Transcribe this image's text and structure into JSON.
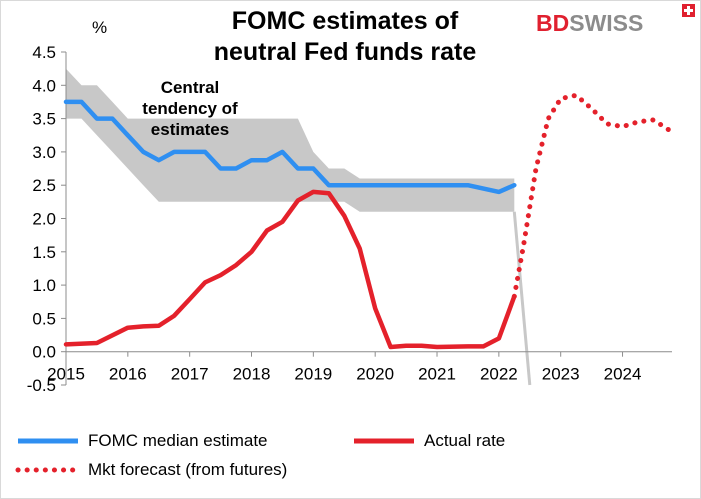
{
  "title_line1": "FOMC estimates of",
  "title_line2": "neutral Fed funds rate",
  "brand": {
    "bd": "BD",
    "swiss": "SWISS"
  },
  "colors": {
    "median": "#2f8ff1",
    "actual": "#e4212b",
    "band": "#c8c8c8",
    "axis": "#8c8c8c"
  },
  "chart_data": {
    "type": "line",
    "title": "FOMC estimates of neutral Fed funds rate",
    "ylabel": "%",
    "ylim": [
      -0.5,
      4.5
    ],
    "yticks": [
      -0.5,
      0.0,
      0.5,
      1.0,
      1.5,
      2.0,
      2.5,
      3.0,
      3.5,
      4.0,
      4.5
    ],
    "ytick_labels": [
      "-0.5",
      "0.0",
      "0.5",
      "1.0",
      "1.5",
      "2.0",
      "2.5",
      "3.0",
      "3.5",
      "4.0",
      "4.5"
    ],
    "xlim": [
      2015,
      2024.8
    ],
    "xticks": [
      2015,
      2016,
      2017,
      2018,
      2019,
      2020,
      2021,
      2022,
      2023,
      2024
    ],
    "xtick_labels": [
      "2015",
      "2016",
      "2017",
      "2018",
      "2019",
      "2020",
      "2021",
      "2022",
      "2023",
      "2024"
    ],
    "annotation": [
      "Central",
      "tendency of",
      "estimates"
    ],
    "band": {
      "name": "Central tendency of estimates",
      "x": [
        2015.0,
        2015.25,
        2015.5,
        2015.75,
        2016.0,
        2016.25,
        2016.5,
        2016.75,
        2017.0,
        2017.25,
        2017.5,
        2017.75,
        2018.0,
        2018.25,
        2018.5,
        2018.75,
        2019.0,
        2019.25,
        2019.5,
        2019.75,
        2020.0,
        2020.5,
        2021.0,
        2021.5,
        2022.0,
        2022.25
      ],
      "upper": [
        4.25,
        4.0,
        4.0,
        3.75,
        3.5,
        3.5,
        3.5,
        3.5,
        3.5,
        3.5,
        3.5,
        3.5,
        3.5,
        3.5,
        3.5,
        3.5,
        3.0,
        2.75,
        2.75,
        2.6,
        2.6,
        2.6,
        2.6,
        2.6,
        2.6,
        2.6
      ],
      "lower": [
        3.5,
        3.5,
        3.25,
        3.0,
        2.75,
        2.5,
        2.25,
        2.25,
        2.25,
        2.25,
        2.25,
        2.25,
        2.25,
        2.25,
        2.25,
        2.25,
        2.25,
        2.25,
        2.25,
        2.1,
        2.1,
        2.1,
        2.1,
        2.1,
        2.1,
        2.1
      ]
    },
    "series": [
      {
        "name": "FOMC median estimate",
        "style": "solid",
        "x": [
          2015.0,
          2015.25,
          2015.5,
          2015.75,
          2016.0,
          2016.25,
          2016.5,
          2016.75,
          2017.0,
          2017.25,
          2017.5,
          2017.75,
          2018.0,
          2018.25,
          2018.5,
          2018.75,
          2019.0,
          2019.25,
          2019.5,
          2019.75,
          2020.0,
          2020.5,
          2021.0,
          2021.5,
          2022.0,
          2022.25
        ],
        "values": [
          3.75,
          3.75,
          3.5,
          3.5,
          3.25,
          3.0,
          2.875,
          3.0,
          3.0,
          3.0,
          2.75,
          2.75,
          2.875,
          2.875,
          3.0,
          2.75,
          2.75,
          2.5,
          2.5,
          2.5,
          2.5,
          2.5,
          2.5,
          2.5,
          2.4,
          2.5
        ]
      },
      {
        "name": "Actual rate",
        "style": "solid",
        "x": [
          2015.0,
          2015.5,
          2016.0,
          2016.25,
          2016.5,
          2016.75,
          2017.0,
          2017.25,
          2017.5,
          2017.75,
          2018.0,
          2018.25,
          2018.5,
          2018.75,
          2019.0,
          2019.25,
          2019.5,
          2019.75,
          2020.0,
          2020.25,
          2020.5,
          2020.75,
          2021.0,
          2021.5,
          2021.75,
          2022.0,
          2022.25
        ],
        "values": [
          0.11,
          0.13,
          0.36,
          0.38,
          0.39,
          0.54,
          0.79,
          1.04,
          1.15,
          1.3,
          1.5,
          1.82,
          1.95,
          2.27,
          2.4,
          2.38,
          2.04,
          1.55,
          0.65,
          0.07,
          0.09,
          0.09,
          0.07,
          0.08,
          0.08,
          0.2,
          0.83
        ]
      },
      {
        "name": "Mkt forecast (from futures)",
        "style": "dotted",
        "x": [
          2022.25,
          2022.4,
          2022.6,
          2022.8,
          2023.0,
          2023.25,
          2023.5,
          2023.75,
          2024.0,
          2024.25,
          2024.5,
          2024.75
        ],
        "values": [
          0.83,
          1.6,
          2.75,
          3.5,
          3.8,
          3.85,
          3.65,
          3.42,
          3.38,
          3.45,
          3.48,
          3.33
        ]
      }
    ],
    "band_drop": {
      "x": [
        2022.25,
        2022.5
      ],
      "values": [
        2.1,
        -0.5
      ]
    },
    "legend": [
      "FOMC median estimate",
      "Actual rate",
      "Mkt forecast (from futures)"
    ]
  }
}
